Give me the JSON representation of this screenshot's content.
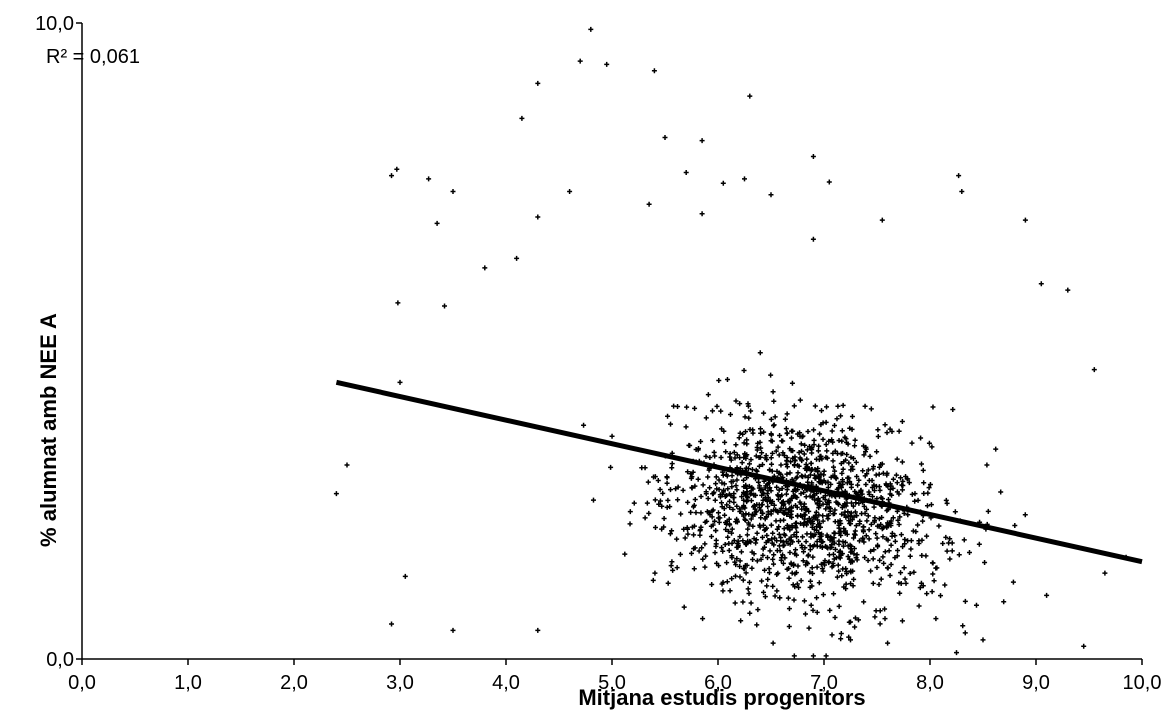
{
  "chart_data": {
    "type": "scatter",
    "title": "",
    "xlabel": "Mitjana estudis progenitors",
    "ylabel": "% alumnat amb NEE A",
    "xlim": [
      0,
      10
    ],
    "ylim": [
      0,
      10
    ],
    "x_ticks": [
      "0,0",
      "1,0",
      "2,0",
      "3,0",
      "4,0",
      "5,0",
      "6,0",
      "7,0",
      "8,0",
      "9,0",
      "10,0"
    ],
    "y_ticks": [
      "0,0",
      "10,0"
    ],
    "grid": false,
    "legend": "none",
    "annotation": "R² = 0,061",
    "trendline": {
      "x": [
        2.4,
        10.0
      ],
      "y": [
        4.35,
        1.53
      ]
    },
    "series": [
      {
        "points_seed": 7,
        "points_count": 1500,
        "marker": "+",
        "color": "#000000",
        "x_center": 6.8,
        "y_center": 2.4,
        "x_range": [
          2.4,
          9.95
        ],
        "y_range": [
          0.0,
          9.9
        ],
        "points": [
          [
            4.8,
            9.9
          ],
          [
            4.7,
            9.4
          ],
          [
            4.95,
            9.35
          ],
          [
            5.4,
            9.25
          ],
          [
            4.3,
            9.05
          ],
          [
            6.3,
            8.85
          ],
          [
            4.15,
            8.5
          ],
          [
            5.5,
            8.2
          ],
          [
            5.85,
            8.15
          ],
          [
            6.9,
            7.9
          ],
          [
            2.97,
            7.7
          ],
          [
            2.92,
            7.6
          ],
          [
            5.7,
            7.65
          ],
          [
            3.27,
            7.55
          ],
          [
            6.05,
            7.48
          ],
          [
            6.25,
            7.55
          ],
          [
            8.27,
            7.6
          ],
          [
            7.05,
            7.5
          ],
          [
            3.5,
            7.35
          ],
          [
            4.6,
            7.35
          ],
          [
            6.5,
            7.3
          ],
          [
            8.3,
            7.35
          ],
          [
            5.35,
            7.15
          ],
          [
            4.3,
            6.95
          ],
          [
            5.85,
            7.0
          ],
          [
            8.9,
            6.9
          ],
          [
            3.35,
            6.85
          ],
          [
            7.55,
            6.9
          ],
          [
            6.9,
            6.6
          ],
          [
            4.1,
            6.3
          ],
          [
            3.8,
            6.15
          ],
          [
            2.98,
            5.6
          ],
          [
            3.42,
            5.55
          ],
          [
            3.0,
            4.35
          ],
          [
            2.5,
            3.05
          ],
          [
            2.4,
            2.6
          ],
          [
            3.05,
            1.3
          ],
          [
            2.92,
            0.55
          ],
          [
            3.5,
            0.45
          ],
          [
            4.3,
            0.45
          ],
          [
            9.65,
            1.35
          ],
          [
            9.85,
            1.6
          ],
          [
            9.55,
            4.55
          ],
          [
            9.3,
            5.8
          ],
          [
            9.05,
            5.9
          ],
          [
            8.62,
            3.3
          ],
          [
            8.8,
            2.1
          ],
          [
            9.1,
            1.0
          ],
          [
            6.52,
            0.25
          ],
          [
            6.72,
            0.05
          ],
          [
            6.9,
            0.05
          ],
          [
            7.02,
            0.05
          ],
          [
            7.25,
            0.3
          ],
          [
            7.6,
            0.25
          ],
          [
            8.5,
            0.3
          ],
          [
            8.25,
            0.1
          ],
          [
            9.45,
            0.2
          ]
        ]
      }
    ]
  }
}
